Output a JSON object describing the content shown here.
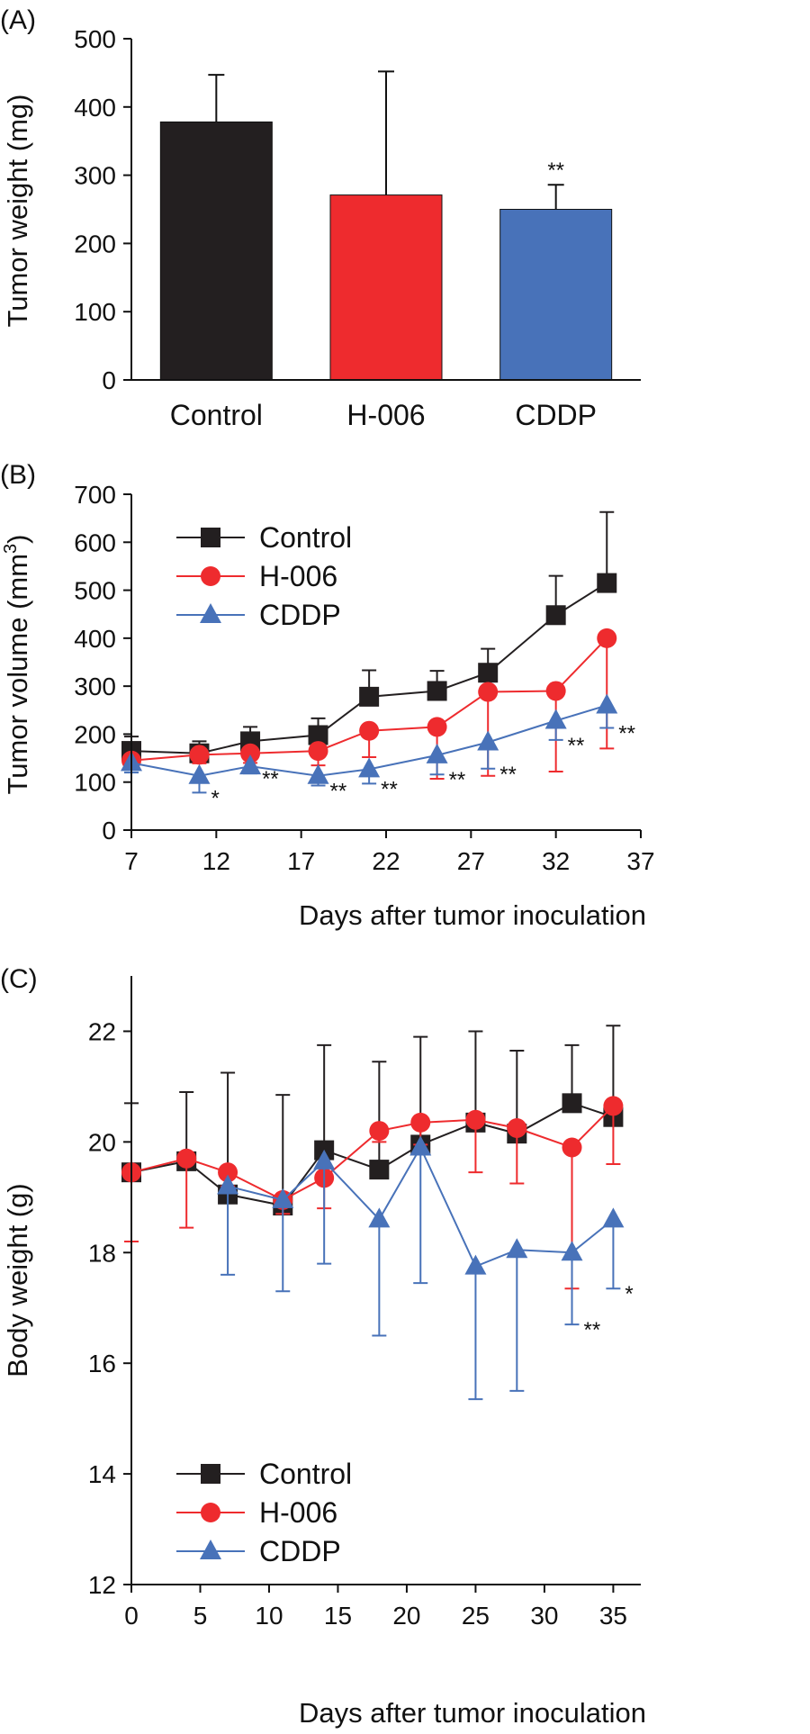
{
  "chart_data": [
    {
      "panel": "(A)",
      "type": "bar",
      "ylabel": "Tumor weight (mg)",
      "xlabel": "",
      "ylim": [
        0,
        500
      ],
      "yticks": [
        0,
        100,
        200,
        300,
        400,
        500
      ],
      "categories": [
        "Control",
        "H-006",
        "CDDP"
      ],
      "values": [
        378,
        271,
        250
      ],
      "errors": [
        69,
        181,
        36
      ],
      "colors": [
        "#231f20",
        "#ee2b2e",
        "#4872b9"
      ],
      "annotations": [
        "",
        "",
        "**"
      ],
      "grid": false
    },
    {
      "panel": "(B)",
      "type": "line",
      "ylabel": "Tumor volume (mm3)",
      "ylabel_main": "Tumor volume (mm",
      "ylabel_sup": "3",
      "ylabel_end": ")",
      "xlabel": "Days after tumor inoculation",
      "xlim": [
        7,
        37
      ],
      "ylim": [
        0,
        700
      ],
      "xticks": [
        7,
        12,
        17,
        22,
        27,
        32,
        37
      ],
      "yticks": [
        0,
        100,
        200,
        300,
        400,
        500,
        600,
        700
      ],
      "legend_position": "upper-left",
      "grid": false,
      "series": [
        {
          "name": "Control",
          "color": "#231f20",
          "marker": "square",
          "x": [
            7,
            11,
            14,
            18,
            21,
            25,
            28,
            32,
            35
          ],
          "y": [
            165,
            160,
            185,
            198,
            278,
            290,
            328,
            448,
            515
          ],
          "err": [
            30,
            25,
            30,
            35,
            55,
            42,
            50,
            82,
            148
          ],
          "err_dir": "up",
          "annotations": [
            "",
            "",
            "",
            "",
            "",
            "",
            "",
            "",
            ""
          ]
        },
        {
          "name": "H-006",
          "color": "#ee2b2e",
          "marker": "circle",
          "x": [
            7,
            11,
            14,
            18,
            21,
            25,
            28,
            32,
            35
          ],
          "y": [
            145,
            157,
            160,
            165,
            207,
            215,
            288,
            290,
            400
          ],
          "err": [
            15,
            18,
            20,
            30,
            55,
            108,
            175,
            168,
            230
          ],
          "err_dir": "down",
          "annotations": [
            "",
            "",
            "",
            "",
            "",
            "",
            "",
            "",
            ""
          ]
        },
        {
          "name": "CDDP",
          "color": "#4872b9",
          "marker": "triangle",
          "x": [
            7,
            11,
            14,
            18,
            21,
            25,
            28,
            32,
            35
          ],
          "y": [
            140,
            113,
            133,
            113,
            127,
            156,
            183,
            228,
            260
          ],
          "err": [
            20,
            35,
            15,
            20,
            30,
            40,
            55,
            40,
            47
          ],
          "err_dir": "down",
          "annotations": [
            "",
            "*",
            "**",
            "**",
            "**",
            "**",
            "**",
            "**",
            "**"
          ]
        }
      ]
    },
    {
      "panel": "(C)",
      "type": "line",
      "ylabel": "Body weight (g)",
      "xlabel": "Days after tumor inoculation",
      "xlim": [
        0,
        37
      ],
      "ylim": [
        12,
        23
      ],
      "xticks": [
        0,
        5,
        10,
        15,
        20,
        25,
        30,
        35
      ],
      "yticks": [
        12,
        14,
        16,
        18,
        20,
        22
      ],
      "legend_position": "lower-left",
      "grid": false,
      "series": [
        {
          "name": "Control",
          "color": "#231f20",
          "marker": "square",
          "x": [
            0,
            4,
            7,
            11,
            14,
            18,
            21,
            25,
            28,
            32,
            35
          ],
          "y": [
            19.45,
            19.65,
            19.05,
            18.85,
            19.85,
            19.5,
            19.95,
            20.35,
            20.15,
            20.7,
            20.45
          ],
          "err": [
            1.25,
            1.25,
            2.2,
            2.0,
            1.9,
            1.95,
            1.95,
            1.65,
            1.5,
            1.05,
            1.65
          ],
          "err_dir": "up",
          "annotations": [
            "",
            "",
            "",
            "",
            "",
            "",
            "",
            "",
            "",
            "",
            ""
          ]
        },
        {
          "name": "H-006",
          "color": "#ee2b2e",
          "marker": "circle",
          "x": [
            0,
            4,
            7,
            11,
            14,
            18,
            21,
            25,
            28,
            32,
            35
          ],
          "y": [
            19.45,
            19.7,
            19.45,
            18.95,
            19.35,
            20.2,
            20.35,
            20.4,
            20.25,
            19.9,
            20.65
          ],
          "err": [
            1.25,
            1.25,
            0.25,
            0.25,
            0.55,
            0.2,
            0.4,
            0.95,
            1.0,
            2.55,
            1.05
          ],
          "err_dir": "down",
          "annotations": [
            "",
            "",
            "",
            "",
            "",
            "",
            "",
            "",
            "",
            "",
            ""
          ]
        },
        {
          "name": "CDDP",
          "color": "#4872b9",
          "marker": "triangle",
          "x": [
            7,
            11,
            14,
            18,
            21,
            25,
            28,
            32,
            35
          ],
          "y": [
            19.2,
            18.95,
            19.65,
            18.6,
            19.9,
            17.75,
            18.05,
            18.0,
            18.6
          ],
          "err": [
            1.6,
            1.65,
            1.85,
            2.1,
            2.45,
            2.4,
            2.55,
            1.3,
            1.25
          ],
          "err_dir": "down",
          "annotations": [
            "",
            "",
            "",
            "",
            "",
            "",
            "",
            "**",
            "*"
          ]
        }
      ]
    }
  ]
}
